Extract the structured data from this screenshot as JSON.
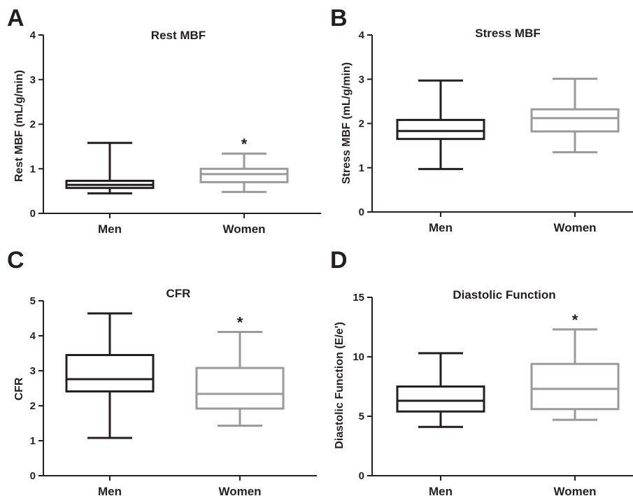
{
  "chart_data": [
    {
      "type": "box",
      "panel_letter": "A",
      "title": "Rest MBF",
      "ylabel": "Rest MBF (mL/g/min)",
      "ylim": [
        0,
        4
      ],
      "yticks": [
        "0",
        "1",
        "2",
        "3",
        "4"
      ],
      "categories": [
        "Men",
        "Women"
      ],
      "colors": [
        "#231f20",
        "#9a9a9a"
      ],
      "boxes": [
        {
          "min": 0.45,
          "q1": 0.57,
          "median": 0.64,
          "q3": 0.73,
          "max": 1.58
        },
        {
          "min": 0.48,
          "q1": 0.7,
          "median": 0.88,
          "q3": 1.0,
          "max": 1.34
        }
      ],
      "annotations": [
        "",
        "*"
      ]
    },
    {
      "type": "box",
      "panel_letter": "B",
      "title": "Stress MBF",
      "ylabel": "Stress MBF (mL/g/min)",
      "ylim": [
        0,
        4
      ],
      "yticks": [
        "0",
        "1",
        "2",
        "3",
        "4"
      ],
      "categories": [
        "Men",
        "Women"
      ],
      "colors": [
        "#231f20",
        "#9a9a9a"
      ],
      "boxes": [
        {
          "min": 0.97,
          "q1": 1.65,
          "median": 1.83,
          "q3": 2.08,
          "max": 2.97
        },
        {
          "min": 1.35,
          "q1": 1.82,
          "median": 2.12,
          "q3": 2.32,
          "max": 3.01
        }
      ],
      "annotations": [
        "",
        ""
      ]
    },
    {
      "type": "box",
      "panel_letter": "C",
      "title": "CFR",
      "ylabel": "CFR",
      "ylim": [
        0,
        5
      ],
      "yticks": [
        "0",
        "1",
        "2",
        "3",
        "4",
        "5"
      ],
      "categories": [
        "Men",
        "Women"
      ],
      "colors": [
        "#231f20",
        "#9a9a9a"
      ],
      "boxes": [
        {
          "min": 1.08,
          "q1": 2.41,
          "median": 2.76,
          "q3": 3.45,
          "max": 4.64
        },
        {
          "min": 1.43,
          "q1": 1.92,
          "median": 2.34,
          "q3": 3.08,
          "max": 4.11
        }
      ],
      "annotations": [
        "",
        "*"
      ]
    },
    {
      "type": "box",
      "panel_letter": "D",
      "title": "Diastolic Function",
      "ylabel": "Diastolic Function (E/e')",
      "ylim": [
        0,
        15
      ],
      "yticks": [
        "0",
        "5",
        "10",
        "15"
      ],
      "categories": [
        "Men",
        "Women"
      ],
      "colors": [
        "#231f20",
        "#9a9a9a"
      ],
      "boxes": [
        {
          "min": 4.1,
          "q1": 5.4,
          "median": 6.3,
          "q3": 7.5,
          "max": 10.3
        },
        {
          "min": 4.7,
          "q1": 5.6,
          "median": 7.3,
          "q3": 9.4,
          "max": 12.3
        }
      ],
      "annotations": [
        "",
        "*"
      ]
    }
  ]
}
